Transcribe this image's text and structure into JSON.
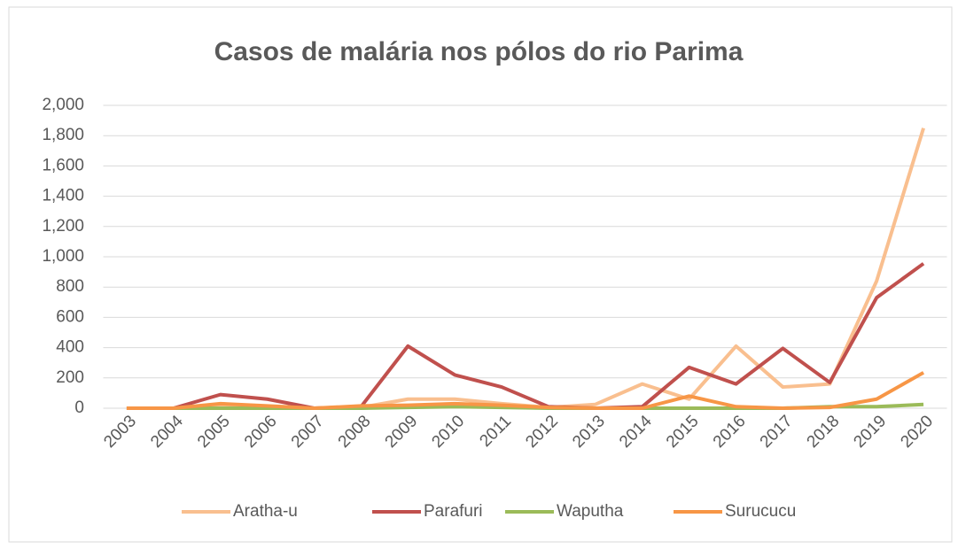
{
  "chart_data": {
    "type": "line",
    "title": "Casos de malária nos pólos do rio Parima",
    "categories": [
      "2003",
      "2004",
      "2005",
      "2006",
      "2007",
      "2008",
      "2009",
      "2010",
      "2011",
      "2012",
      "2013",
      "2014",
      "2015",
      "2016",
      "2017",
      "2018",
      "2019",
      "2020"
    ],
    "series": [
      {
        "name": "Aratha-u",
        "color": "#f9bf8f",
        "values": [
          0,
          0,
          20,
          10,
          0,
          5,
          60,
          60,
          30,
          5,
          25,
          160,
          60,
          410,
          140,
          160,
          840,
          1850
        ]
      },
      {
        "name": "Parafuri",
        "color": "#c0504d",
        "values": [
          0,
          0,
          90,
          60,
          0,
          10,
          410,
          220,
          140,
          10,
          0,
          10,
          270,
          160,
          395,
          170,
          730,
          955
        ]
      },
      {
        "name": "Waputha",
        "color": "#9bbb59",
        "values": [
          0,
          0,
          0,
          0,
          0,
          0,
          5,
          10,
          5,
          0,
          0,
          0,
          0,
          0,
          0,
          10,
          10,
          25
        ]
      },
      {
        "name": "Surucucu",
        "color": "#f79646",
        "values": [
          0,
          0,
          30,
          15,
          0,
          15,
          20,
          30,
          20,
          5,
          0,
          0,
          80,
          10,
          0,
          5,
          60,
          235
        ]
      }
    ],
    "ylim": [
      0,
      2000
    ],
    "yticks": [
      0,
      200,
      400,
      600,
      800,
      {
        "value": 1000,
        "label": "1,000"
      },
      {
        "value": 1200,
        "label": "1,200"
      },
      {
        "value": 1400,
        "label": "1,400"
      },
      {
        "value": 1600,
        "label": "1,600"
      },
      {
        "value": 1800,
        "label": "1,800"
      },
      {
        "value": 2000,
        "label": "2,000"
      }
    ],
    "grid": true,
    "legend": "bottom"
  }
}
